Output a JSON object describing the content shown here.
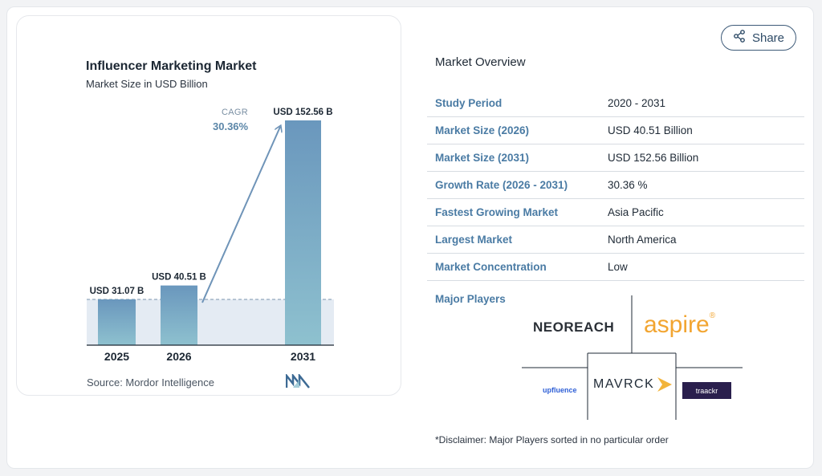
{
  "share_label": "Share",
  "chart_data": {
    "type": "bar",
    "title": "Influencer Marketing Market",
    "subtitle": "Market Size in USD Billion",
    "categories": [
      "2025",
      "2026",
      "2031"
    ],
    "values": [
      31.07,
      40.51,
      152.56
    ],
    "data_labels": [
      "USD 31.07 B",
      "USD 40.51 B",
      "USD 152.56 B"
    ],
    "cagr_label": "CAGR",
    "cagr_value": "30.36%",
    "source": "Source:  Mordor Intelligence",
    "colors": {
      "bar_top": "#6a97bd",
      "bar_bottom": "#8ec1cf",
      "band": "#e4ebf3",
      "arrow": "#6f94b8"
    },
    "ylim": [
      0,
      152.56
    ]
  },
  "overview": {
    "title": "Market Overview",
    "rows": [
      {
        "key": "Study Period",
        "value": "2020 - 2031"
      },
      {
        "key": "Market Size (2026)",
        "value": "USD 40.51 Billion"
      },
      {
        "key": "Market Size (2031)",
        "value": "USD 152.56 Billion"
      },
      {
        "key": "Growth Rate (2026 - 2031)",
        "value": "30.36 %"
      },
      {
        "key": "Fastest Growing Market",
        "value": "Asia Pacific"
      },
      {
        "key": "Largest Market",
        "value": "North America"
      },
      {
        "key": "Market Concentration",
        "value": "Low"
      }
    ]
  },
  "players": {
    "label": "Major Players",
    "neoreach": "NEOREACH",
    "aspire": "aspire",
    "upfluence": "upfluence",
    "mavrck": "MAVRCK",
    "traackr": "traackr"
  },
  "disclaimer": "*Disclaimer: Major Players sorted in no particular order"
}
